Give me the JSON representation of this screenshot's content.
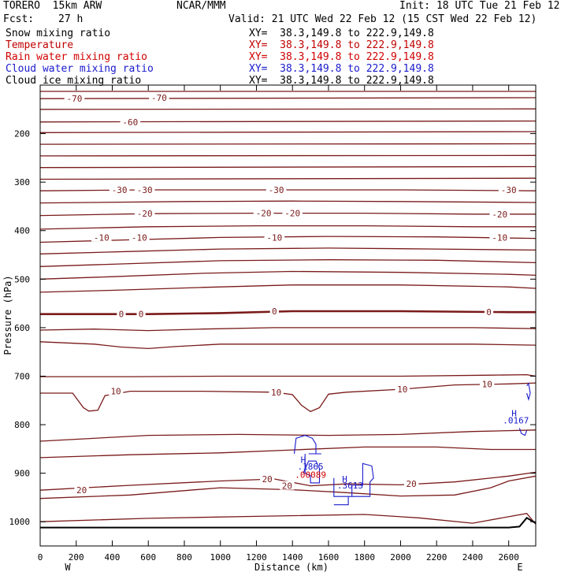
{
  "header": {
    "model": "TORERO  15km ARW",
    "center": "NCAR/MMM",
    "init": "Init: 18 UTC Tue 21 Feb 12",
    "fcst_label": "Fcst:",
    "fcst_value": "27 h",
    "valid": "Valid: 21 UTC Wed 22 Feb 12 (15 CST Wed 22 Feb 12)"
  },
  "fields": [
    {
      "name": "Snow mixing ratio",
      "xy": "XY=  38.3,149.8 to 222.9,149.8",
      "color": "#000000"
    },
    {
      "name": "Temperature",
      "xy": "XY=  38.3,149.8 to 222.9,149.8",
      "color": "#c00000"
    },
    {
      "name": "Rain water mixing ratio",
      "xy": "XY=  38.3,149.8 to 222.9,149.8",
      "color": "#d00000"
    },
    {
      "name": "Cloud water mixing ratio",
      "xy": "XY=  38.3,149.8 to 222.9,149.8",
      "color": "#1a1acc"
    },
    {
      "name": "Cloud ice mixing ratio",
      "xy": "XY=  38.3,149.8 to 222.9,149.8",
      "color": "#000000"
    }
  ],
  "chart_data": {
    "type": "contour",
    "xlabel": "Distance (km)",
    "ylabel": "Pressure (hPa)",
    "xlim": [
      0,
      2750
    ],
    "ylim": [
      1050,
      100
    ],
    "x_ticks": [
      0,
      200,
      400,
      600,
      800,
      1000,
      1200,
      1400,
      1600,
      1800,
      2000,
      2200,
      2400,
      2600
    ],
    "y_ticks": [
      200,
      300,
      400,
      500,
      600,
      700,
      800,
      900,
      1000
    ],
    "x_end_labels": {
      "left": "W",
      "right": "E"
    },
    "isotherm_color": "#7a1a1a",
    "ground_color": "#000000",
    "cloud_color": "#1a1acc",
    "rain_color": "#d00000",
    "isotherms": [
      {
        "x": [
          0,
          2750
        ],
        "p": [
          113,
          113
        ]
      },
      {
        "x": [
          0,
          2750
        ],
        "p": [
          128,
          126
        ]
      },
      {
        "x": [
          0,
          2750
        ],
        "p": [
          150,
          149
        ]
      },
      {
        "x": [
          0,
          2750
        ],
        "p": [
          176,
          174
        ]
      },
      {
        "x": [
          0,
          2750
        ],
        "p": [
          198,
          196
        ]
      },
      {
        "x": [
          0,
          2750
        ],
        "p": [
          222,
          221
        ]
      },
      {
        "x": [
          0,
          2750
        ],
        "p": [
          246,
          245
        ]
      },
      {
        "x": [
          0,
          2750
        ],
        "p": [
          270,
          268
        ]
      },
      {
        "x": [
          0,
          2750
        ],
        "p": [
          294,
          292
        ]
      },
      {
        "x": [
          0,
          600,
          1300,
          2000,
          2750
        ],
        "p": [
          318,
          316,
          316,
          316,
          318
        ]
      },
      {
        "x": [
          0,
          800,
          1400,
          2000,
          2750
        ],
        "p": [
          343,
          340,
          339,
          340,
          342
        ]
      },
      {
        "x": [
          0,
          600,
          1200,
          1800,
          2400,
          2750
        ],
        "p": [
          369,
          365,
          364,
          364,
          366,
          366
        ]
      },
      {
        "x": [
          0,
          600,
          1200,
          1800,
          2400,
          2750
        ],
        "p": [
          397,
          392,
          390,
          390,
          392,
          392
        ]
      },
      {
        "x": [
          0,
          500,
          1000,
          1600,
          2200,
          2750
        ],
        "p": [
          424,
          419,
          414,
          412,
          413,
          416
        ]
      },
      {
        "x": [
          0,
          500,
          1000,
          1600,
          2200,
          2750
        ],
        "p": [
          448,
          443,
          438,
          436,
          438,
          440
        ]
      },
      {
        "x": [
          0,
          500,
          1000,
          1600,
          2200,
          2750
        ],
        "p": [
          474,
          468,
          462,
          460,
          461,
          466
        ]
      },
      {
        "x": [
          0,
          400,
          900,
          1400,
          2000,
          2600,
          2750
        ],
        "p": [
          500,
          495,
          488,
          484,
          486,
          490,
          492
        ]
      },
      {
        "x": [
          0,
          400,
          900,
          1400,
          2000,
          2600,
          2750
        ],
        "p": [
          527,
          523,
          517,
          512,
          512,
          516,
          519
        ]
      },
      {
        "x": [
          0,
          300,
          600,
          1000,
          1400,
          2000,
          2600,
          2750
        ],
        "p": [
          572,
          572,
          572,
          570,
          566,
          566,
          568,
          568
        ],
        "bold": true
      },
      {
        "x": [
          0,
          300,
          600,
          900,
          1300,
          1800,
          2400,
          2750
        ],
        "p": [
          605,
          603,
          606,
          603,
          600,
          600,
          600,
          602
        ]
      },
      {
        "x": [
          0,
          300,
          450,
          600,
          750,
          1000,
          1400,
          1800,
          2400,
          2750
        ],
        "p": [
          629,
          634,
          640,
          643,
          639,
          634,
          634,
          634,
          634,
          636
        ]
      },
      {
        "x": [
          0,
          500,
          1000,
          1500,
          2000,
          2500,
          2700,
          2750
        ],
        "p": [
          701,
          701,
          700,
          700,
          700,
          698,
          697,
          700
        ]
      },
      {
        "x": [
          0,
          180,
          240,
          270,
          320,
          360,
          500,
          900,
          1300,
          1400,
          1450,
          1500,
          1550,
          1600,
          1700,
          2000,
          2300,
          2600,
          2750
        ],
        "p": [
          735,
          735,
          765,
          772,
          770,
          740,
          731,
          731,
          733,
          738,
          760,
          773,
          765,
          737,
          733,
          727,
          718,
          716,
          714
        ]
      },
      {
        "x": [
          0,
          600,
          1100,
          1600,
          2000,
          2400,
          2750
        ],
        "p": [
          834,
          822,
          820,
          822,
          820,
          814,
          811
        ]
      },
      {
        "x": [
          0,
          500,
          1000,
          1400,
          1800,
          2200,
          2500,
          2750
        ],
        "p": [
          868,
          862,
          858,
          852,
          846,
          846,
          851,
          851
        ]
      },
      {
        "x": [
          0,
          500,
          1000,
          1300,
          1500,
          1700,
          2000,
          2300,
          2600,
          2750
        ],
        "p": [
          935,
          925,
          916,
          912,
          926,
          922,
          924,
          918,
          906,
          898
        ]
      },
      {
        "x": [
          0,
          500,
          1000,
          1400,
          1700,
          2000,
          2300,
          2500,
          2600,
          2750
        ],
        "p": [
          952,
          945,
          930,
          934,
          940,
          947,
          945,
          930,
          916,
          906
        ]
      },
      {
        "x": [
          0,
          600,
          1200,
          1800,
          2100,
          2400,
          2700,
          2750
        ],
        "p": [
          1000,
          993,
          989,
          985,
          992,
          1003,
          983,
          1005
        ]
      }
    ],
    "isotherm_labels": [
      {
        "text": "-70",
        "x": 190,
        "p": 128
      },
      {
        "text": "-70",
        "x": 660,
        "p": 126
      },
      {
        "text": "-60",
        "x": 500,
        "p": 176
      },
      {
        "text": "-30",
        "x": 440,
        "p": 316
      },
      {
        "text": "-30",
        "x": 580,
        "p": 316
      },
      {
        "text": "-30",
        "x": 1310,
        "p": 316
      },
      {
        "text": "-30",
        "x": 2600,
        "p": 316
      },
      {
        "text": "-20",
        "x": 580,
        "p": 365
      },
      {
        "text": "-20",
        "x": 1240,
        "p": 364
      },
      {
        "text": "-20",
        "x": 1400,
        "p": 364
      },
      {
        "text": "-20",
        "x": 2550,
        "p": 366
      },
      {
        "text": "-10",
        "x": 340,
        "p": 414
      },
      {
        "text": "-10",
        "x": 550,
        "p": 414
      },
      {
        "text": "-10",
        "x": 1300,
        "p": 414
      },
      {
        "text": "-10",
        "x": 2550,
        "p": 414
      },
      {
        "text": "0",
        "x": 450,
        "p": 572
      },
      {
        "text": "0",
        "x": 560,
        "p": 572
      },
      {
        "text": "0",
        "x": 1300,
        "p": 566
      },
      {
        "text": "0",
        "x": 2490,
        "p": 568
      },
      {
        "text": "10",
        "x": 420,
        "p": 731
      },
      {
        "text": "10",
        "x": 1310,
        "p": 733
      },
      {
        "text": "10",
        "x": 2010,
        "p": 727
      },
      {
        "text": "10",
        "x": 2480,
        "p": 716
      },
      {
        "text": "20",
        "x": 230,
        "p": 935
      },
      {
        "text": "20",
        "x": 1260,
        "p": 912
      },
      {
        "text": "20",
        "x": 1370,
        "p": 926
      },
      {
        "text": "20",
        "x": 2060,
        "p": 922
      }
    ],
    "ground": {
      "x": [
        0,
        2600,
        2660,
        2700,
        2750
      ],
      "p": [
        1012,
        1012,
        1010,
        992,
        1003
      ]
    },
    "clouds": [
      {
        "x": [
          1410,
          1420,
          1470,
          1510,
          1530,
          1530,
          1490,
          1560
        ],
        "p": [
          860,
          828,
          822,
          828,
          840,
          860,
          860,
          860
        ]
      },
      {
        "x": [
          1470,
          1470,
          1500,
          1500,
          1550,
          1550,
          1530,
          1490,
          1460
        ],
        "p": [
          860,
          900,
          905,
          920,
          920,
          890,
          875,
          875,
          900
        ]
      },
      {
        "x": [
          1630,
          1630,
          1730,
          1730,
          1790,
          1790,
          1840,
          1850,
          1830,
          1830,
          1710,
          1710,
          1630
        ],
        "p": [
          910,
          948,
          948,
          925,
          925,
          880,
          885,
          910,
          918,
          948,
          948,
          965,
          965
        ]
      },
      {
        "x": [
          2700,
          2710,
          2720,
          2710,
          2700
        ],
        "p": [
          720,
          715,
          735,
          748,
          735
        ]
      },
      {
        "x": [
          2660,
          2670,
          2690,
          2700
        ],
        "p": [
          807,
          818,
          822,
          812
        ]
      }
    ],
    "extrema": [
      {
        "mark": "H",
        "x": 1460,
        "p": 872,
        "color": "#1a1acc"
      },
      {
        "mark": "H",
        "x": 1690,
        "p": 912,
        "color": "#1a1acc"
      },
      {
        "mark": "H",
        "x": 2630,
        "p": 776,
        "color": "#1a1acc"
      }
    ],
    "value_labels": [
      {
        "text": ".1865",
        "x": 1500,
        "p": 886,
        "color": "#1a1acc"
      },
      {
        "text": ".00089",
        "x": 1500,
        "p": 903,
        "color": "#d00000"
      },
      {
        "text": ".3613",
        "x": 1720,
        "p": 925,
        "color": "#1a1acc"
      },
      {
        "text": ".0167",
        "x": 2640,
        "p": 791,
        "color": "#1a1acc"
      }
    ]
  }
}
